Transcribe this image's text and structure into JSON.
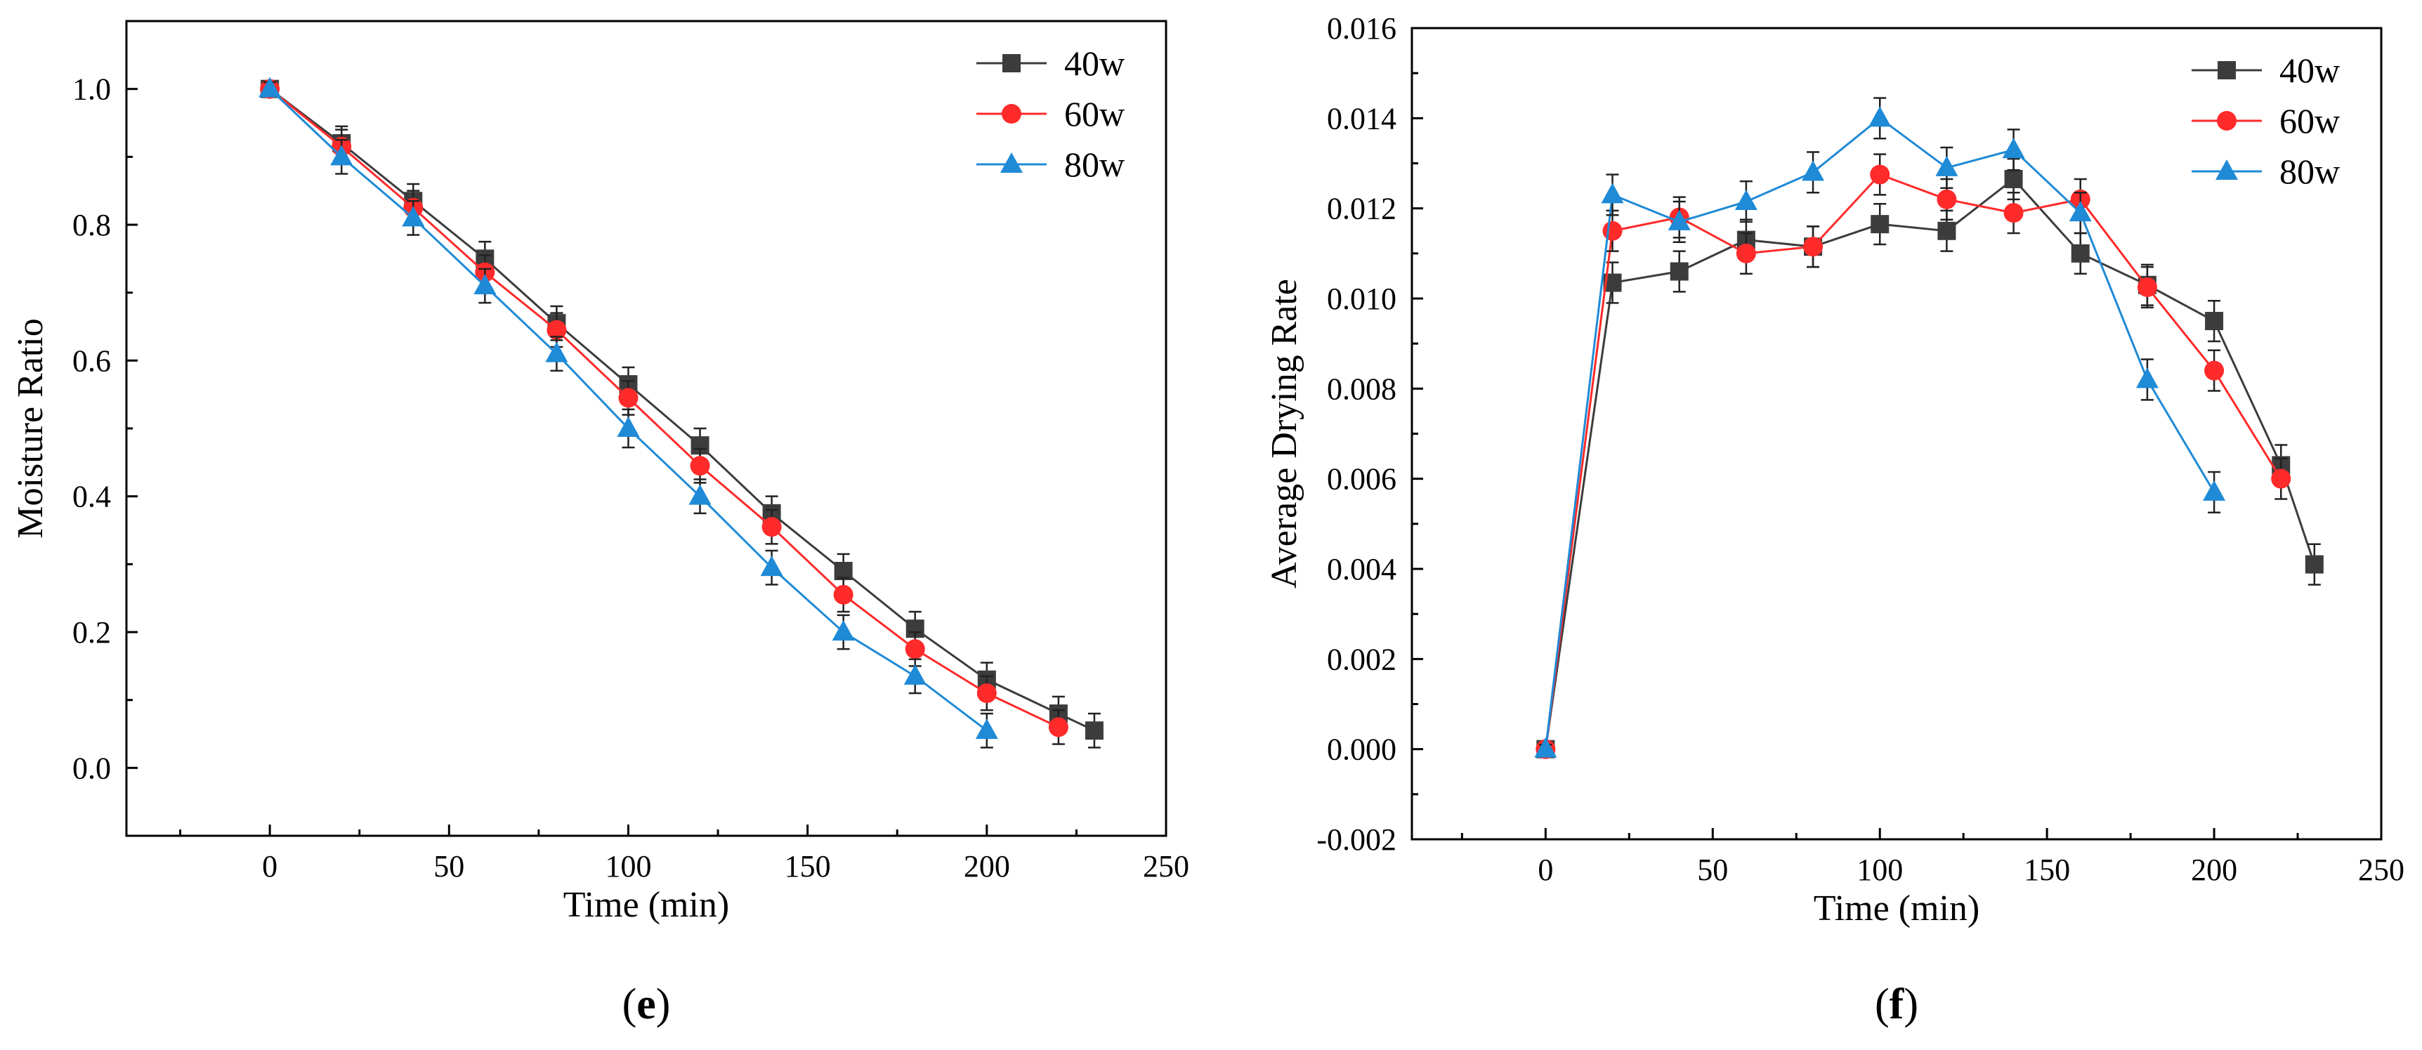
{
  "chart_data": [
    {
      "type": "line",
      "panel_label": "e",
      "title": "",
      "xlabel": "Time (min)",
      "ylabel": "Moisture Ratio",
      "xlim": [
        -40,
        250
      ],
      "ylim": [
        -0.1,
        1.1
      ],
      "xticks": [
        0,
        50,
        100,
        150,
        200,
        250
      ],
      "xtick_labels": [
        "0",
        "50",
        "100",
        "150",
        "200",
        "250"
      ],
      "yticks": [
        0.0,
        0.2,
        0.4,
        0.6,
        0.8,
        1.0
      ],
      "ytick_labels": [
        "0.0",
        "0.2",
        "0.4",
        "0.6",
        "0.8",
        "1.0"
      ],
      "grid": false,
      "legend": "top-right",
      "series": [
        {
          "name": "40w",
          "color": "#3c3c3c",
          "marker": "square",
          "x": [
            0,
            20,
            40,
            60,
            80,
            100,
            120,
            140,
            160,
            180,
            200,
            220,
            230
          ],
          "y": [
            1.0,
            0.92,
            0.835,
            0.75,
            0.655,
            0.565,
            0.475,
            0.375,
            0.29,
            0.205,
            0.13,
            0.08,
            0.055
          ],
          "err": [
            0.01,
            0.025,
            0.025,
            0.025,
            0.025,
            0.025,
            0.025,
            0.025,
            0.025,
            0.025,
            0.025,
            0.025,
            0.025
          ]
        },
        {
          "name": "60w",
          "color": "#ff2a2a",
          "marker": "circle",
          "x": [
            0,
            20,
            40,
            60,
            80,
            100,
            120,
            140,
            160,
            180,
            200,
            220
          ],
          "y": [
            1.0,
            0.915,
            0.825,
            0.73,
            0.645,
            0.545,
            0.445,
            0.355,
            0.255,
            0.175,
            0.11,
            0.06
          ],
          "err": [
            0.01,
            0.025,
            0.025,
            0.025,
            0.025,
            0.025,
            0.025,
            0.025,
            0.025,
            0.025,
            0.025,
            0.025
          ]
        },
        {
          "name": "80w",
          "color": "#1f8ad6",
          "marker": "triangle",
          "x": [
            0,
            20,
            40,
            60,
            80,
            100,
            120,
            140,
            160,
            180,
            200
          ],
          "y": [
            1.0,
            0.9,
            0.81,
            0.71,
            0.61,
            0.5,
            0.4,
            0.295,
            0.2,
            0.135,
            0.055
          ],
          "err": [
            0.01,
            0.025,
            0.025,
            0.025,
            0.025,
            0.028,
            0.025,
            0.025,
            0.025,
            0.025,
            0.025
          ]
        }
      ]
    },
    {
      "type": "line",
      "panel_label": "f",
      "title": "",
      "xlabel": "Time (min)",
      "ylabel": "Average Drying Rate",
      "xlim": [
        -40,
        250
      ],
      "ylim": [
        -0.002,
        0.016
      ],
      "xticks": [
        0,
        50,
        100,
        150,
        200,
        250
      ],
      "xtick_labels": [
        "0",
        "50",
        "100",
        "150",
        "200",
        "250"
      ],
      "yticks": [
        -0.002,
        0.0,
        0.002,
        0.004,
        0.006,
        0.008,
        0.01,
        0.012,
        0.014,
        0.016
      ],
      "ytick_labels": [
        "-0.002",
        "0.000",
        "0.002",
        "0.004",
        "0.006",
        "0.008",
        "0.010",
        "0.012",
        "0.014",
        "0.016"
      ],
      "grid": false,
      "legend": "top-right",
      "series": [
        {
          "name": "40w",
          "color": "#3c3c3c",
          "marker": "square",
          "x": [
            0,
            20,
            40,
            60,
            80,
            100,
            120,
            140,
            160,
            180,
            200,
            220,
            230
          ],
          "y": [
            0.0,
            0.01035,
            0.0106,
            0.0113,
            0.01115,
            0.01165,
            0.0115,
            0.01265,
            0.011,
            0.0103,
            0.0095,
            0.0063,
            0.0041
          ],
          "err": [
            0.0001,
            0.00045,
            0.00045,
            0.00045,
            0.00045,
            0.00045,
            0.00045,
            0.00045,
            0.00045,
            0.00045,
            0.00045,
            0.00045,
            0.00045
          ]
        },
        {
          "name": "60w",
          "color": "#ff2a2a",
          "marker": "circle",
          "x": [
            0,
            20,
            40,
            60,
            80,
            100,
            120,
            140,
            160,
            180,
            200,
            220
          ],
          "y": [
            0.0,
            0.0115,
            0.0118,
            0.011,
            0.01115,
            0.01275,
            0.0122,
            0.0119,
            0.0122,
            0.01025,
            0.0084,
            0.006
          ],
          "err": [
            0.0001,
            0.00045,
            0.00045,
            0.00045,
            0.00045,
            0.00045,
            0.00045,
            0.00045,
            0.00045,
            0.00045,
            0.00045,
            0.00045
          ]
        },
        {
          "name": "80w",
          "color": "#1f8ad6",
          "marker": "triangle",
          "x": [
            0,
            20,
            40,
            60,
            80,
            100,
            120,
            140,
            160,
            180,
            200
          ],
          "y": [
            0.0,
            0.0123,
            0.0117,
            0.01215,
            0.0128,
            0.014,
            0.0129,
            0.0133,
            0.0119,
            0.0082,
            0.0057
          ],
          "err": [
            0.0001,
            0.00045,
            0.00045,
            0.00045,
            0.00045,
            0.00045,
            0.00045,
            0.00045,
            0.00045,
            0.00045,
            0.00045
          ]
        }
      ]
    }
  ]
}
